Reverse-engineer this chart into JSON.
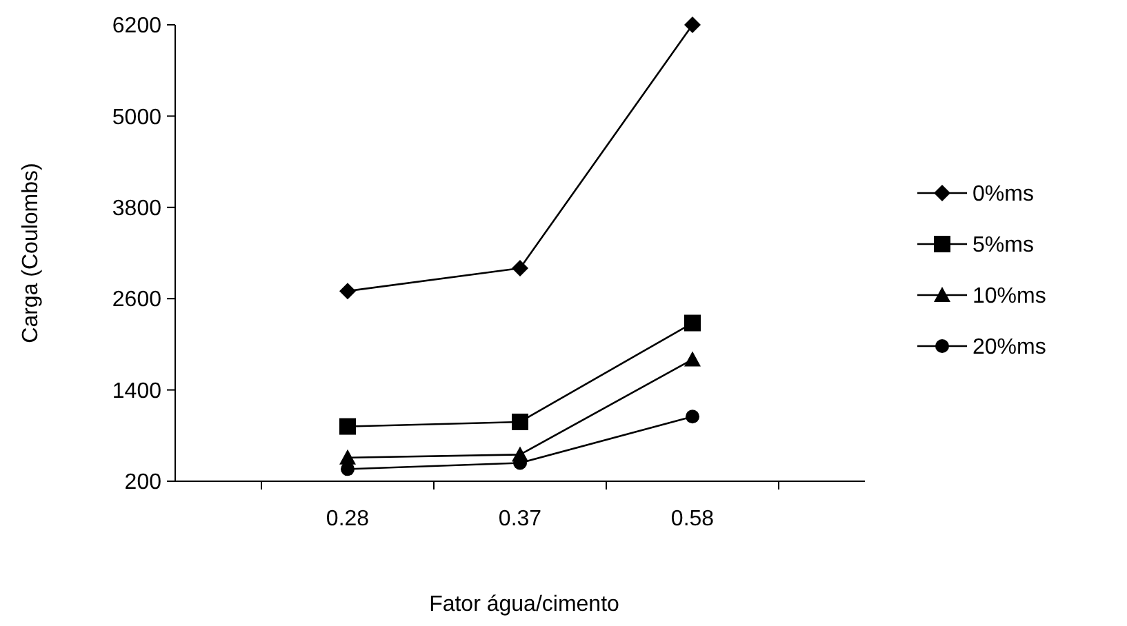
{
  "chart_data": {
    "type": "line",
    "xlabel": "Fator água/cimento",
    "ylabel": "Carga (Coulombs)",
    "categories": [
      "0.28",
      "0.37",
      "0.58"
    ],
    "ylim": [
      200,
      6200
    ],
    "yticks": [
      200,
      1400,
      2600,
      3800,
      5000,
      6200
    ],
    "grid": false,
    "legend": "right",
    "series": [
      {
        "name": "0%ms",
        "color": "#000000",
        "marker": "diamond",
        "values": [
          2700,
          3000,
          6200
        ]
      },
      {
        "name": "5%ms",
        "color": "#000000",
        "marker": "square",
        "values": [
          920,
          980,
          2280
        ]
      },
      {
        "name": "10%ms",
        "color": "#000000",
        "marker": "triangle",
        "values": [
          510,
          550,
          1800
        ]
      },
      {
        "name": "20%ms",
        "color": "#000000",
        "marker": "circle",
        "values": [
          360,
          440,
          1050
        ]
      }
    ]
  }
}
